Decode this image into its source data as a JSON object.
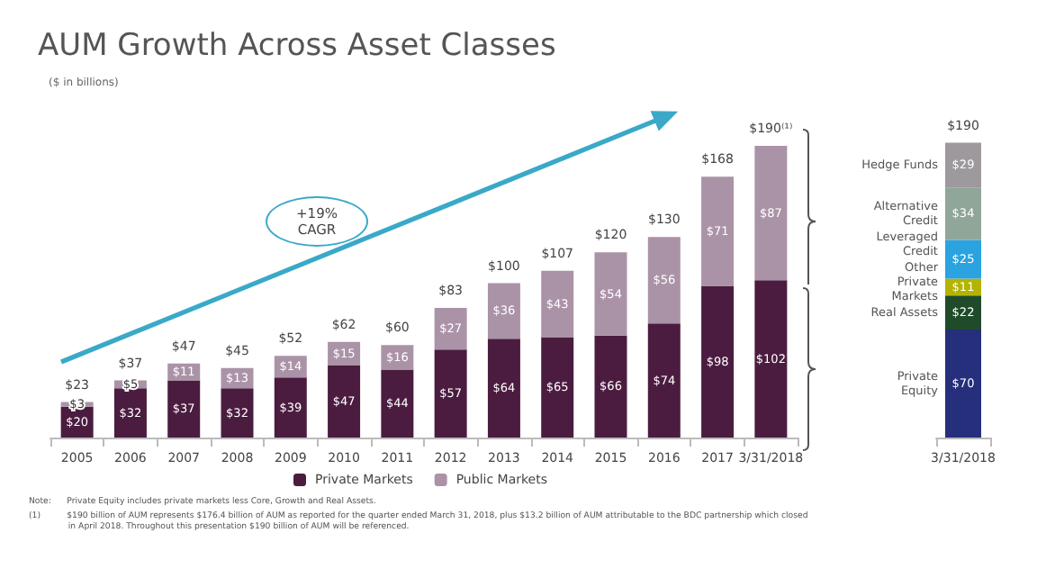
{
  "chart_data": [
    {
      "type": "bar",
      "title": "AUM Growth Across Asset Classes",
      "subtitle": "($ in billions)",
      "categories": [
        "2005",
        "2006",
        "2007",
        "2008",
        "2009",
        "2010",
        "2011",
        "2012",
        "2013",
        "2014",
        "2015",
        "2016",
        "2017",
        "3/31/2018"
      ],
      "stacked": true,
      "legend": "bottom",
      "tick_labels": "x",
      "series": [
        {
          "name": "Private Markets",
          "color": "#4b1c40",
          "values": [
            20,
            32,
            37,
            32,
            39,
            47,
            44,
            57,
            64,
            65,
            66,
            74,
            98,
            102
          ],
          "value_labels": [
            "$20",
            "$32",
            "$37",
            "$32",
            "$39",
            "$47",
            "$44",
            "$57",
            "$64",
            "$65",
            "$66",
            "$74",
            "$98",
            "$102"
          ]
        },
        {
          "name": "Public Markets",
          "color": "#ab93a7",
          "values": [
            3,
            5,
            11,
            13,
            14,
            15,
            16,
            27,
            36,
            43,
            54,
            56,
            71,
            87
          ],
          "value_labels": [
            "$3",
            "$5",
            "$11",
            "$13",
            "$14",
            "$15",
            "$16",
            "$27",
            "$36",
            "$43",
            "$54",
            "$56",
            "$71",
            "$87"
          ]
        }
      ],
      "totals": [
        "$23",
        "$37",
        "$47",
        "$45",
        "$52",
        "$62",
        "$60",
        "$83",
        "$100",
        "$107",
        "$120",
        "$130",
        "$168",
        "$190⁽¹⁾"
      ],
      "annotations": [
        "+19%\nCAGR",
        "Note:      Private Equity includes private markets less Core, Growth and Real Assets.",
        "(1)          $190 billion of AUM represents $176.4 billion of AUM as reported for the quarter ended March 31, 2018, plus $13.2 billion of AUM attributable to the BDC partnership which closed\n               in April 2018. Throughout this presentation $190 billion of AUM will be referenced."
      ]
    },
    {
      "type": "bar",
      "categories": [
        "3/31/2018"
      ],
      "stacked": true,
      "tick_labels": "x",
      "series": [
        {
          "name": "Private Equity",
          "color": "#262f7c",
          "values": [
            70
          ],
          "value_labels": [
            "$70"
          ]
        },
        {
          "name": "Real Assets",
          "color": "#1f4b2b",
          "values": [
            22
          ],
          "value_labels": [
            "$22"
          ]
        },
        {
          "name": "Other Private Markets",
          "color": "#b3b300",
          "values": [
            11
          ],
          "value_labels": [
            "$11"
          ]
        },
        {
          "name": "Leveraged Credit",
          "color": "#2aa3e0",
          "values": [
            25
          ],
          "value_labels": [
            "$25"
          ]
        },
        {
          "name": "Alternative Credit",
          "color": "#8fa699",
          "values": [
            34
          ],
          "value_labels": [
            "$34"
          ]
        },
        {
          "name": "Hedge Funds",
          "color": "#9e999c",
          "values": [
            29
          ],
          "value_labels": [
            "$29"
          ]
        }
      ],
      "totals": [
        "$190"
      ]
    }
  ]
}
